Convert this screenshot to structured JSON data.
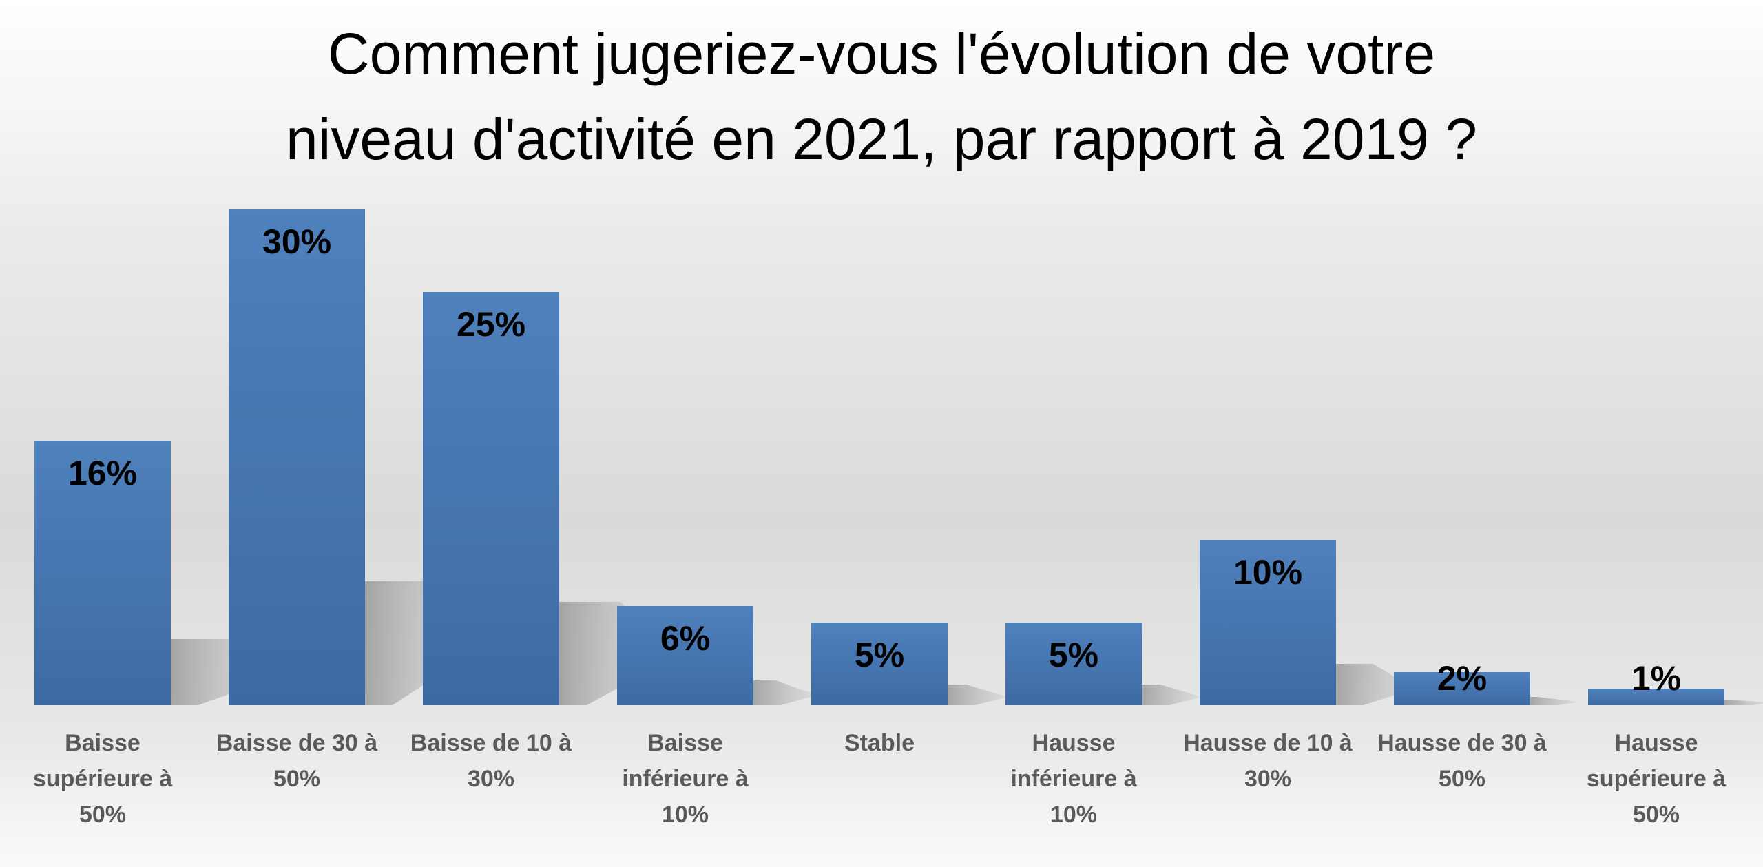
{
  "chart_data": {
    "type": "bar",
    "title_lines": [
      "Comment jugeriez-vous l'évolution de votre",
      "niveau d'activité en 2021, par rapport à 2019 ?"
    ],
    "categories": [
      [
        "Baisse",
        "supérieure à",
        "50%"
      ],
      [
        "Baisse de 30 à",
        "50%"
      ],
      [
        "Baisse de 10 à",
        "30%"
      ],
      [
        "Baisse",
        "inférieure à",
        "10%"
      ],
      [
        "Stable"
      ],
      [
        "Hausse",
        "inférieure à",
        "10%"
      ],
      [
        "Hausse de 10 à",
        "30%"
      ],
      [
        "Hausse de 30 à",
        "50%"
      ],
      [
        "Hausse",
        "supérieure à",
        "50%"
      ]
    ],
    "values": [
      16,
      30,
      25,
      6,
      5,
      5,
      10,
      2,
      1
    ],
    "data_labels": [
      "16%",
      "30%",
      "25%",
      "6%",
      "5%",
      "5%",
      "10%",
      "2%",
      "1%"
    ],
    "xlabel": "",
    "ylabel": "",
    "ylim": [
      0,
      30
    ],
    "grid": false,
    "legend": "none",
    "colors": {
      "bar_top": "#4f81bd",
      "bar_bottom": "#3d6aa3",
      "title": "#000000",
      "data_label": "#000000",
      "category_label": "#5a5a5a",
      "shadow": "#a6a6a6"
    }
  }
}
